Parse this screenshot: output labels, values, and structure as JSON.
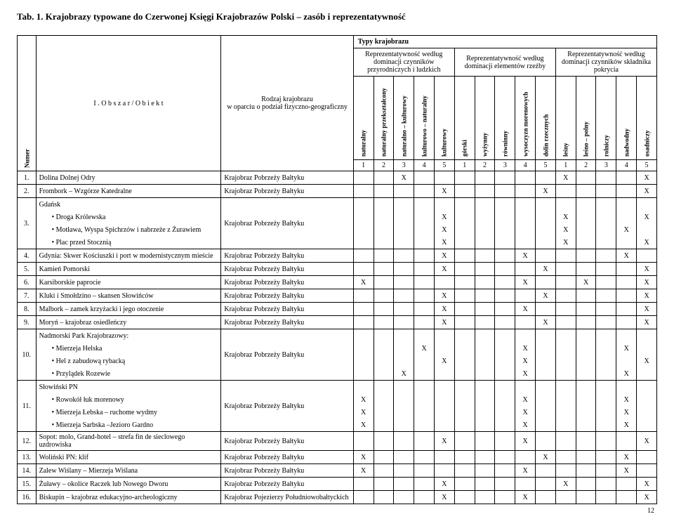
{
  "title": "Tab. 1. Krajobrazy typowane do Czerwonej Księgi Krajobrazów Polski – zasób i reprezentatywność",
  "header": {
    "numer": "Numer",
    "obszar": "I .    O b s z a r   /   O b i e k t",
    "rodzaj": "Rodzaj krajobrazu\nw oparciu o podział fizyczno-geograficzny",
    "typy": "Typy krajobrazu",
    "group1": "Reprezentatywność według dominacji czynników przyrodniczych i ludzkich",
    "group2": "Reprezentatywność według dominacji elementów rzeźby",
    "group3": "Reprezentatywność według dominacji czynników składnika pokrycia",
    "cols1": [
      "naturalny",
      "naturalny przekształcony",
      "naturalno – kulturowy",
      "kulturowo – naturalny",
      "kulturowy"
    ],
    "cols2": [
      "górski",
      "wyżynny",
      "równinny",
      "wysoczyzn morenowych",
      "dolin rzecznych"
    ],
    "cols3": [
      "leśny",
      "leśno – polny",
      "rolniczy",
      "nadwodny",
      "osadniczy"
    ],
    "nums": [
      "1",
      "2",
      "3",
      "4",
      "5",
      "1",
      "2",
      "3",
      "4",
      "5",
      "1",
      "2",
      "3",
      "4",
      "5"
    ]
  },
  "rows": [
    {
      "n": "1.",
      "obj": "Dolina Dolnej Odry",
      "rodz": "Krajobraz Pobrzeży Bałtyku",
      "x": [
        0,
        0,
        1,
        0,
        0,
        0,
        0,
        0,
        0,
        0,
        1,
        0,
        0,
        0,
        1
      ]
    },
    {
      "n": "2.",
      "obj": "Frombork – Wzgórze Katedralne",
      "rodz": "Krajobraz Pobrzeży Bałtyku",
      "x": [
        0,
        0,
        0,
        0,
        1,
        0,
        0,
        0,
        0,
        1,
        0,
        0,
        0,
        0,
        1
      ]
    },
    {
      "n": "3.",
      "obj": "Gdańsk",
      "rodz": "Krajobraz Pobrzeży Bałtyku",
      "sub": [
        {
          "label": "Droga Królewska",
          "x": [
            0,
            0,
            0,
            0,
            1,
            0,
            0,
            0,
            0,
            0,
            1,
            0,
            0,
            0,
            1
          ]
        },
        {
          "label": "Motława, Wyspa Spichrzów i nabrzeże z Żurawiem",
          "x": [
            0,
            0,
            0,
            0,
            1,
            0,
            0,
            0,
            0,
            0,
            1,
            0,
            0,
            1,
            0
          ]
        },
        {
          "label": "Plac przed Stocznią",
          "x": [
            0,
            0,
            0,
            0,
            1,
            0,
            0,
            0,
            0,
            0,
            1,
            0,
            0,
            0,
            1
          ]
        }
      ]
    },
    {
      "n": "4.",
      "obj": "Gdynia: Skwer Kościuszki i port w modernistycznym mieście",
      "rodz": "Krajobraz Pobrzeży Bałtyku",
      "x": [
        0,
        0,
        0,
        0,
        1,
        0,
        0,
        0,
        1,
        0,
        0,
        0,
        0,
        1,
        0
      ]
    },
    {
      "n": "5.",
      "obj": "Kamień Pomorski",
      "rodz": "Krajobraz Pobrzeży Bałtyku",
      "x": [
        0,
        0,
        0,
        0,
        1,
        0,
        0,
        0,
        0,
        1,
        0,
        0,
        0,
        0,
        1
      ]
    },
    {
      "n": "6.",
      "obj": "Karsiborskie paprocie",
      "rodz": "Krajobraz Pobrzeży Bałtyku",
      "x": [
        1,
        0,
        0,
        0,
        0,
        0,
        0,
        0,
        1,
        0,
        0,
        1,
        0,
        0,
        1
      ]
    },
    {
      "n": "7.",
      "obj": "Kluki i Smołdzino – skansen Słowińców",
      "rodz": "Krajobraz Pobrzeży Bałtyku",
      "x": [
        0,
        0,
        0,
        0,
        1,
        0,
        0,
        0,
        0,
        1,
        0,
        0,
        0,
        0,
        1
      ]
    },
    {
      "n": "8.",
      "obj": "Malbork – zamek krzyżacki i jego otoczenie",
      "rodz": "Krajobraz Pobrzeży Bałtyku",
      "x": [
        0,
        0,
        0,
        0,
        1,
        0,
        0,
        0,
        1,
        0,
        0,
        0,
        0,
        0,
        1
      ]
    },
    {
      "n": "9.",
      "obj": "Moryń – krajobraz osiedleńczy",
      "rodz": "Krajobraz Pobrzeży Bałtyku",
      "x": [
        0,
        0,
        0,
        0,
        1,
        0,
        0,
        0,
        0,
        1,
        0,
        0,
        0,
        0,
        1
      ]
    },
    {
      "n": "10.",
      "obj": "Nadmorski Park Krajobrazowy:",
      "rodz": "Krajobraz Pobrzeży Bałtyku",
      "sub": [
        {
          "label": "Mierzeja Helska",
          "x": [
            0,
            0,
            0,
            1,
            0,
            0,
            0,
            0,
            1,
            0,
            0,
            0,
            0,
            1,
            0
          ]
        },
        {
          "label": "Hel z zabudową rybacką",
          "x": [
            0,
            0,
            0,
            0,
            1,
            0,
            0,
            0,
            1,
            0,
            0,
            0,
            0,
            0,
            1
          ]
        },
        {
          "label": "Przylądek Rozewie",
          "x": [
            0,
            0,
            1,
            0,
            0,
            0,
            0,
            0,
            1,
            0,
            0,
            0,
            0,
            1,
            0
          ]
        }
      ]
    },
    {
      "n": "11.",
      "obj": "Słowiński PN",
      "rodz": "Krajobraz Pobrzeży Bałtyku",
      "sub": [
        {
          "label": "Rowokół łuk morenowy",
          "x": [
            1,
            0,
            0,
            0,
            0,
            0,
            0,
            0,
            1,
            0,
            0,
            0,
            0,
            1,
            0
          ]
        },
        {
          "label": "Mierzeja Łebska – ruchome wydmy",
          "x": [
            1,
            0,
            0,
            0,
            0,
            0,
            0,
            0,
            1,
            0,
            0,
            0,
            0,
            1,
            0
          ]
        },
        {
          "label": "Mierzeja Sarbska –Jezioro Gardno",
          "x": [
            1,
            0,
            0,
            0,
            0,
            0,
            0,
            0,
            1,
            0,
            0,
            0,
            0,
            1,
            0
          ]
        }
      ]
    },
    {
      "n": "12.",
      "obj": "Sopot: molo, Grand-hotel – strefa fin de sieclowego uzdrowiska",
      "rodz": "Krajobraz Pobrzeży Bałtyku",
      "x": [
        0,
        0,
        0,
        0,
        1,
        0,
        0,
        0,
        1,
        0,
        0,
        0,
        0,
        0,
        1
      ]
    },
    {
      "n": "13.",
      "obj": "Woliński PN: klif",
      "rodz": "Krajobraz Pobrzeży Bałtyku",
      "x": [
        1,
        0,
        0,
        0,
        0,
        0,
        0,
        0,
        0,
        1,
        0,
        0,
        0,
        1,
        0
      ]
    },
    {
      "n": "14.",
      "obj": "Zalew Wiślany – Mierzeja Wiślana",
      "rodz": "Krajobraz Pobrzeży Bałtyku",
      "x": [
        1,
        0,
        0,
        0,
        0,
        0,
        0,
        0,
        1,
        0,
        0,
        0,
        0,
        1,
        0
      ]
    },
    {
      "n": "15.",
      "obj": "Żuławy – okolice Raczek lub Nowego Dworu",
      "rodz": "Krajobraz Pobrzeży Bałtyku",
      "x": [
        0,
        0,
        0,
        0,
        1,
        0,
        0,
        0,
        0,
        0,
        1,
        0,
        0,
        0,
        1
      ]
    },
    {
      "n": "16.",
      "obj": "Biskupin – krajobraz edukacyjno-archeologiczny",
      "rodz": "Krajobraz Pojezierzy Południowobałtyckich",
      "x": [
        0,
        0,
        0,
        0,
        1,
        0,
        0,
        0,
        1,
        0,
        0,
        0,
        0,
        0,
        1
      ]
    }
  ],
  "page": "12"
}
